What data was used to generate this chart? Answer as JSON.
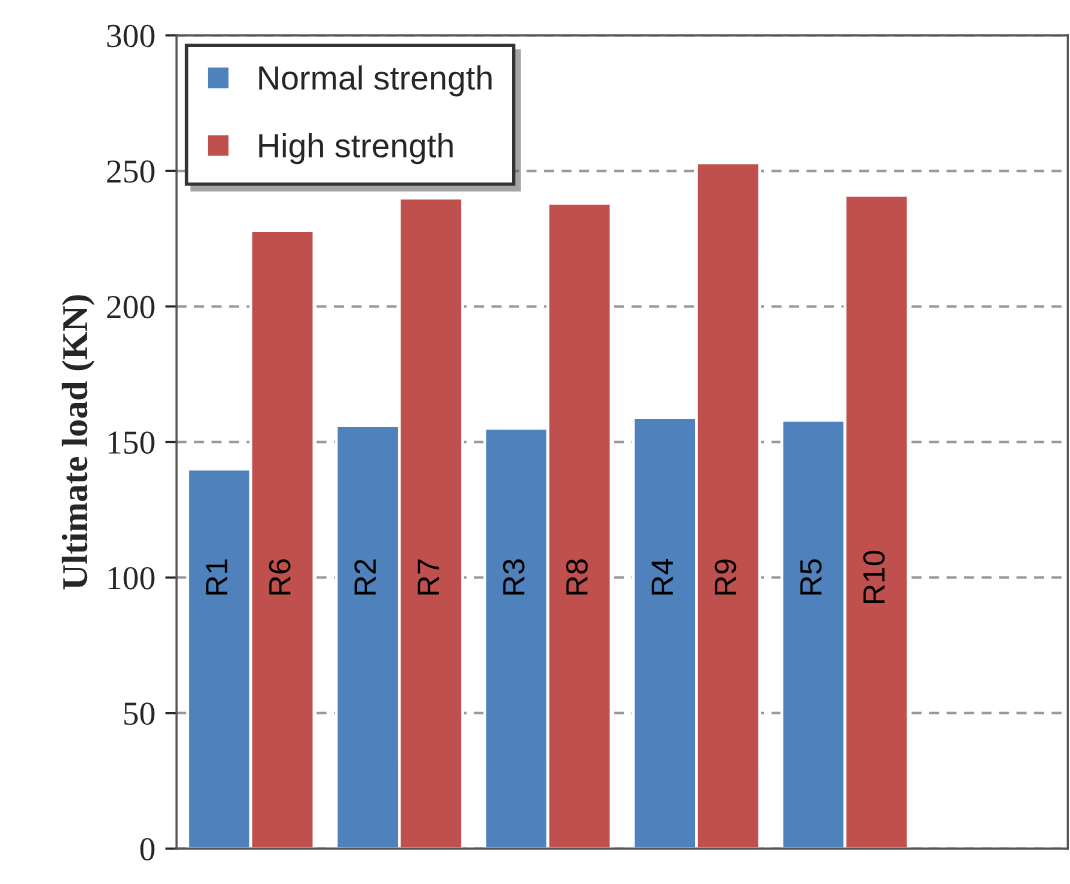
{
  "chart_data": {
    "type": "bar",
    "ylabel": "Ultimate load (KN)",
    "categories": [
      null,
      null,
      null,
      null,
      null,
      null
    ],
    "series": [
      {
        "name": "Normal strength",
        "color": "#4f81bd",
        "values": [
          140,
          156,
          155,
          159,
          158,
          null
        ],
        "value_labels": [
          "R1",
          "R2",
          "R3",
          "R4",
          "R5",
          null
        ]
      },
      {
        "name": "High strength",
        "color": "#c0504d",
        "values": [
          228,
          240,
          238,
          253,
          241,
          null
        ],
        "value_labels": [
          "R6",
          "R7",
          "R8",
          "R9",
          "R10",
          null
        ]
      }
    ],
    "ylim": [
      0,
      300
    ],
    "yticks": [
      0,
      50,
      100,
      150,
      200,
      250,
      300
    ],
    "grid": "y",
    "legend": "top left"
  }
}
